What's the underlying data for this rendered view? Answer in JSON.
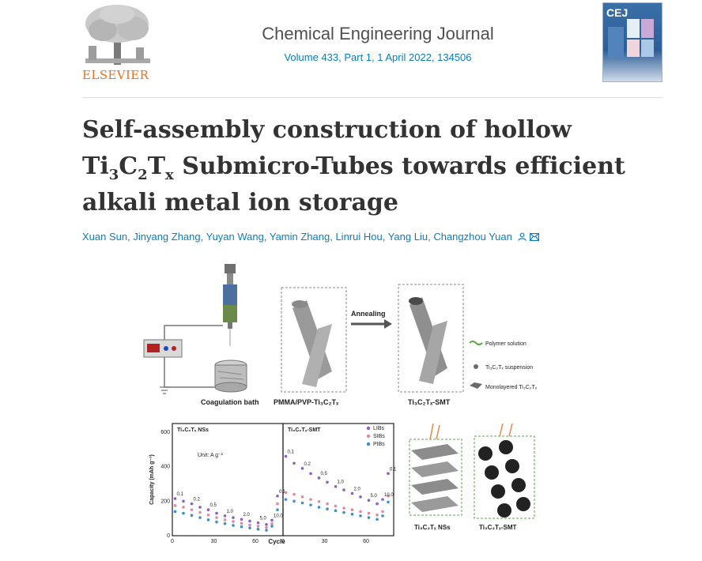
{
  "publisher": {
    "name": "ELSEVIER"
  },
  "journal": {
    "name": "Chemical Engineering Journal",
    "volume": "Volume 433, Part 1",
    "issue_rest": ", 1 April 2022, 134506",
    "cover_abbrev": "CEJ"
  },
  "article": {
    "title_part1": "Self-assembly construction of hollow Ti",
    "title_sub1": "3",
    "title_part2": "C",
    "title_sub2": "2",
    "title_part3": "T",
    "title_sub3": "x",
    "title_part4": " Submicro-Tubes towards efficient alkali metal ion storage"
  },
  "authors": [
    "Xuan Sun",
    "Jinyang Zhang",
    "Yuyan Wang",
    "Yamin Zhang",
    "Linrui Hou",
    "Yang Liu",
    "Changzhou Yuan"
  ],
  "author_icons": [
    "person-icon",
    "envelope-icon"
  ],
  "graphical_abstract": {
    "labels": {
      "coagulation": "Coagulation bath",
      "pmma": "PMMA/PVP-Ti₃C₂Tₓ",
      "annealing": "Annealing",
      "smt": "Ti₃C₂Tₓ-SMT",
      "legend_polymer": "Polymer solution",
      "legend_suspension": "Ti₃C₂Tₓ suspension",
      "legend_mono": "Monolayered Ti₃C₂Tₓ",
      "ns_label": "Ti₃C₂Tₓ NSs",
      "smt_label": "Ti₃C₂Tₓ-SMT",
      "panel_left": "Ti₃C₂Tₓ NSs",
      "panel_right": "Ti₃C₂Tₓ-SMT",
      "unit": "Unit: A g⁻¹",
      "ylabel": "Capacity (mAh g⁻¹)",
      "xlabel": "Cycle"
    },
    "colors": {
      "LIBs": "#8a5fc8",
      "SIBs": "#e08aa0",
      "PIBs": "#3a8fd0"
    },
    "rates_left": [
      "0.1",
      "0.2",
      "0.5",
      "1.0",
      "2.0",
      "5.0",
      "10.0",
      "0.1"
    ],
    "rates_right": [
      "0.1",
      "0.2",
      "0.5",
      "1.0",
      "2.0",
      "5.0",
      "10.0",
      "0.1"
    ]
  },
  "chart_data": {
    "type": "scatter",
    "ylabel": "Capacity (mAh g⁻¹)",
    "xlabel": "Cycle",
    "ylim": [
      0,
      650
    ],
    "panels": [
      {
        "title": "Ti₃C₂Tₓ NSs",
        "xlim": [
          0,
          80
        ],
        "x_ticks": [
          0,
          30,
          60
        ],
        "y_ticks": [
          0,
          200,
          400,
          600
        ],
        "series": [
          {
            "name": "LIBs",
            "x": [
              2,
              8,
              14,
              20,
              26,
              32,
              38,
              44,
              50,
              56,
              62,
              68,
              72,
              76
            ],
            "y": [
              215,
              200,
              185,
              165,
              150,
              130,
              115,
              105,
              95,
              85,
              75,
              65,
              90,
              230
            ]
          },
          {
            "name": "SIBs",
            "x": [
              2,
              8,
              14,
              20,
              26,
              32,
              38,
              44,
              50,
              56,
              62,
              68,
              72,
              76
            ],
            "y": [
              175,
              165,
              150,
              135,
              120,
              105,
              92,
              82,
              72,
              62,
              55,
              48,
              70,
              185
            ]
          },
          {
            "name": "PIBs",
            "x": [
              2,
              8,
              14,
              20,
              26,
              32,
              38,
              44,
              50,
              56,
              62,
              68,
              72,
              76
            ],
            "y": [
              140,
              130,
              118,
              105,
              92,
              80,
              70,
              60,
              52,
              45,
              38,
              32,
              55,
              150
            ]
          }
        ]
      },
      {
        "title": "Ti₃C₂Tₓ-SMT",
        "xlim": [
          0,
          80
        ],
        "x_ticks": [
          0,
          30,
          60
        ],
        "y_ticks": [],
        "legend": [
          "LIBs",
          "SIBs",
          "PIBs"
        ],
        "series": [
          {
            "name": "LIBs",
            "x": [
              2,
              8,
              14,
              20,
              26,
              32,
              38,
              44,
              50,
              56,
              62,
              68,
              72,
              76
            ],
            "y": [
              460,
              420,
              390,
              360,
              335,
              310,
              285,
              265,
              245,
              225,
              205,
              185,
              210,
              360
            ]
          },
          {
            "name": "SIBs",
            "x": [
              2,
              8,
              14,
              20,
              26,
              32,
              38,
              44,
              50,
              56,
              62,
              68,
              72,
              76
            ],
            "y": [
              250,
              240,
              225,
              210,
              198,
              185,
              172,
              160,
              150,
              140,
              130,
              120,
              140,
              230
            ]
          },
          {
            "name": "PIBs",
            "x": [
              2,
              8,
              14,
              20,
              26,
              32,
              38,
              44,
              50,
              56,
              62,
              68,
              72,
              76
            ],
            "y": [
              210,
              200,
              190,
              178,
              165,
              155,
              145,
              135,
              125,
              115,
              105,
              95,
              115,
              195
            ]
          }
        ]
      }
    ]
  }
}
